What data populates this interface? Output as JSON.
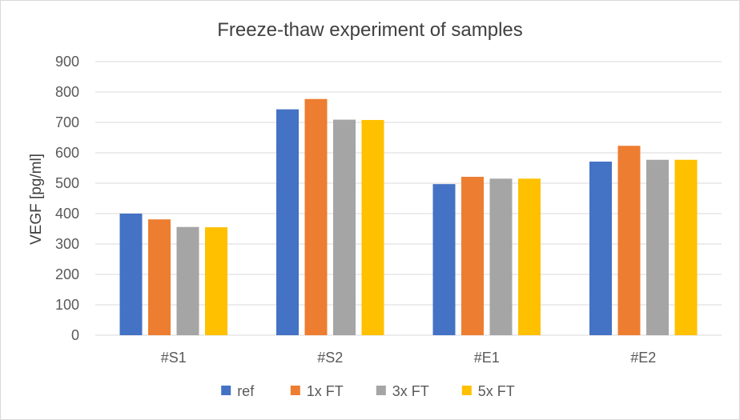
{
  "chart_data": {
    "type": "bar",
    "title": "Freeze-thaw experiment of samples",
    "xlabel": "",
    "ylabel": "VEGF [pg/ml]",
    "categories": [
      "#S1",
      "#S2",
      "#E1",
      "#E2"
    ],
    "ylim": [
      0,
      900
    ],
    "yticks": [
      0,
      100,
      200,
      300,
      400,
      500,
      600,
      700,
      800,
      900
    ],
    "grid": true,
    "legend_position": "bottom",
    "series": [
      {
        "name": "ref",
        "color": "#4472C4",
        "values": [
          400,
          743,
          497,
          571
        ]
      },
      {
        "name": "1x FT",
        "color": "#ED7D31",
        "values": [
          381,
          777,
          521,
          623
        ]
      },
      {
        "name": "3x FT",
        "color": "#A5A5A5",
        "values": [
          356,
          709,
          515,
          577
        ]
      },
      {
        "name": "5x FT",
        "color": "#FFC000",
        "values": [
          355,
          708,
          515,
          577
        ]
      }
    ]
  }
}
